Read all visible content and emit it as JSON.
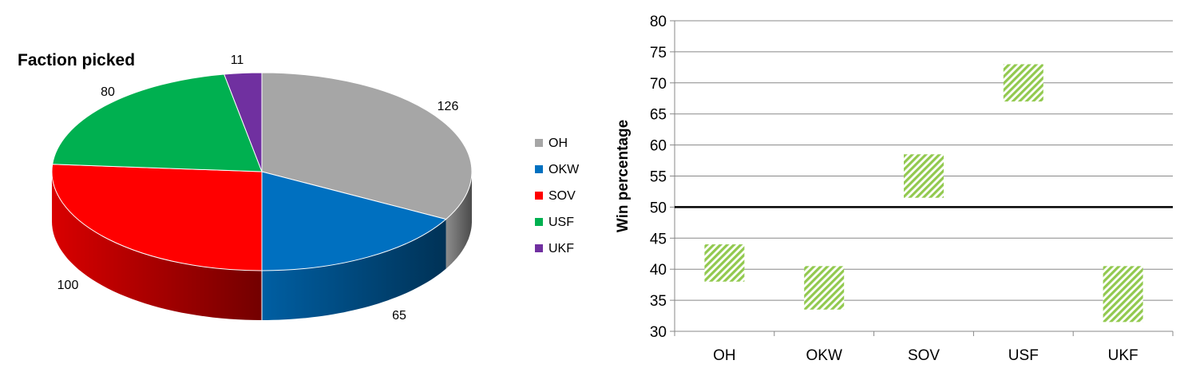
{
  "chart_data": [
    {
      "type": "pie",
      "title": "Faction picked",
      "categories": [
        "OH",
        "OKW",
        "SOV",
        "USF",
        "UKF"
      ],
      "values": [
        126,
        65,
        100,
        80,
        11
      ],
      "colors": [
        "#a6a6a6",
        "#0070c0",
        "#ff0000",
        "#00b050",
        "#7030a0"
      ],
      "legend_position": "right",
      "style": "3d"
    },
    {
      "type": "floating-bar",
      "xlabel": "",
      "ylabel": "Win percentage",
      "categories": [
        "OH",
        "OKW",
        "SOV",
        "USF",
        "UKF"
      ],
      "low": [
        38,
        33.5,
        51.5,
        67,
        31.5
      ],
      "high": [
        44,
        40.5,
        58.5,
        73,
        40.5
      ],
      "ylim": [
        30,
        80
      ],
      "yticks": [
        30,
        35,
        40,
        45,
        50,
        55,
        60,
        65,
        70,
        75,
        80
      ],
      "reference_line": 50,
      "fill": "hatched-green",
      "grid": true
    }
  ]
}
